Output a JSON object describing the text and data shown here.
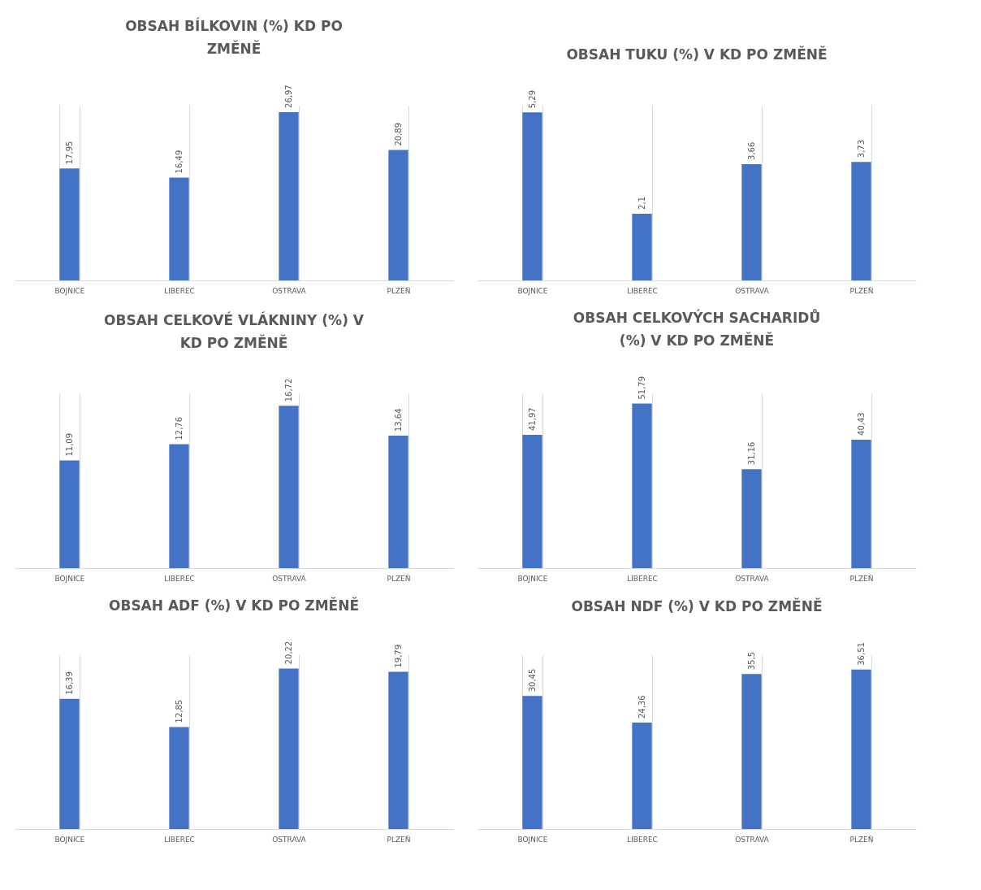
{
  "chart_data": [
    {
      "type": "bar",
      "title": "OBSAH BÍLKOVIN (%) KD PO ZMĚNĚ",
      "categories": [
        "BOJNICE",
        "LIBEREC",
        "OSTRAVA",
        "PLZEŇ"
      ],
      "values": [
        17.95,
        16.49,
        26.97,
        20.89
      ],
      "value_labels": [
        "17,95",
        "16,49",
        "26,97",
        "20,89"
      ],
      "color": "#4472c4",
      "grid": "x",
      "tick_labels": "x"
    },
    {
      "type": "bar",
      "title": "OBSAH TUKU (%) V KD PO ZMĚNĚ",
      "categories": [
        "BOJNICE",
        "LIBEREC",
        "OSTRAVA",
        "PLZEŇ"
      ],
      "values": [
        5.29,
        2.1,
        3.66,
        3.73
      ],
      "value_labels": [
        "5,29",
        "2,1",
        "3,66",
        "3,73"
      ],
      "color": "#4472c4",
      "grid": "x",
      "tick_labels": "x"
    },
    {
      "type": "bar",
      "title": "OBSAH CELKOVÉ VLÁKNINY (%) V KD PO ZMĚNĚ",
      "categories": [
        "BOJNICE",
        "LIBEREC",
        "OSTRAVA",
        "PLZEŇ"
      ],
      "values": [
        11.09,
        12.76,
        16.72,
        13.64
      ],
      "value_labels": [
        "11,09",
        "12,76",
        "16,72",
        "13,64"
      ],
      "color": "#4472c4",
      "grid": "x",
      "tick_labels": "x"
    },
    {
      "type": "bar",
      "title": "OBSAH CELKOVÝCH SACHARIDŮ (%) V KD PO ZMĚNĚ",
      "categories": [
        "BOJNICE",
        "LIBEREC",
        "OSTRAVA",
        "PLZEŇ"
      ],
      "values": [
        41.97,
        51.79,
        31.16,
        40.43
      ],
      "value_labels": [
        "41,97",
        "51,79",
        "31,16",
        "40,43"
      ],
      "color": "#4472c4",
      "grid": "x",
      "tick_labels": "x"
    },
    {
      "type": "bar",
      "title": "OBSAH ADF (%) V KD PO ZMĚNĚ",
      "categories": [
        "BOJNICE",
        "LIBEREC",
        "OSTRAVA",
        "PLZEŇ"
      ],
      "values": [
        16.39,
        12.85,
        20.22,
        19.79
      ],
      "value_labels": [
        "16,39",
        "12,85",
        "20,22",
        "19,79"
      ],
      "color": "#4472c4",
      "grid": "x",
      "tick_labels": "x"
    },
    {
      "type": "bar",
      "title": "OBSAH NDF (%) V KD PO ZMĚNĚ",
      "categories": [
        "BOJNICE",
        "LIBEREC",
        "OSTRAVA",
        "PLZEŇ"
      ],
      "values": [
        30.45,
        24.36,
        35.5,
        36.51
      ],
      "value_labels": [
        "30,45",
        "24,36",
        "35,5",
        "36,51"
      ],
      "color": "#4472c4",
      "grid": "x",
      "tick_labels": "x"
    }
  ]
}
